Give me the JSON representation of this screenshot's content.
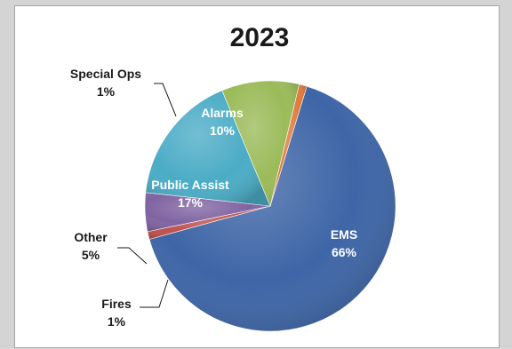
{
  "chart_data": {
    "type": "pie",
    "title": "2023",
    "categories": [
      "EMS",
      "Fires",
      "Other",
      "Public Assist",
      "Alarms",
      "Special Ops"
    ],
    "values": [
      66,
      1,
      5,
      17,
      10,
      1
    ],
    "value_labels": [
      "66%",
      "1%",
      "5%",
      "17%",
      "10%",
      "1%"
    ],
    "colors": [
      "#3e65a6",
      "#c0504d",
      "#8064a2",
      "#4bacc6",
      "#9bbb59",
      "#e07a3a"
    ],
    "start_angle_deg": 73,
    "direction": "clockwise",
    "legend": "none"
  }
}
